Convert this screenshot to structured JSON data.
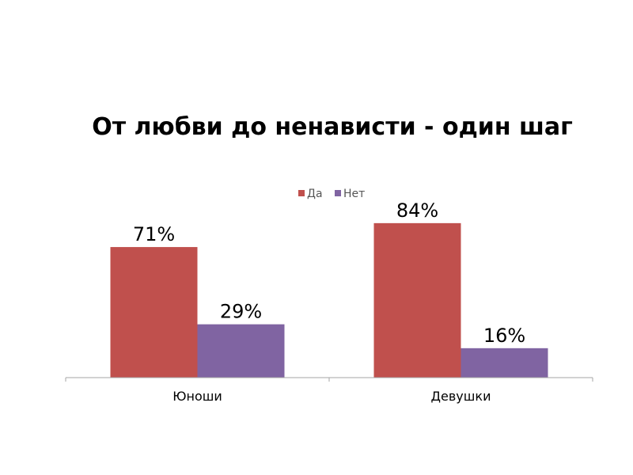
{
  "chart_data": {
    "type": "bar",
    "title": "От любви до ненависти - один шаг",
    "categories": [
      "Юноши",
      "Девушки"
    ],
    "series": [
      {
        "name": "Да",
        "values": [
          71,
          84
        ],
        "labels": [
          "71%",
          "84%"
        ],
        "color": "#c0504d"
      },
      {
        "name": "Нет",
        "values": [
          29,
          16
        ],
        "labels": [
          "29%",
          "16%"
        ],
        "color": "#8064a2"
      }
    ],
    "ylim": [
      0,
      100
    ],
    "grid": false,
    "legend": "top-center"
  }
}
